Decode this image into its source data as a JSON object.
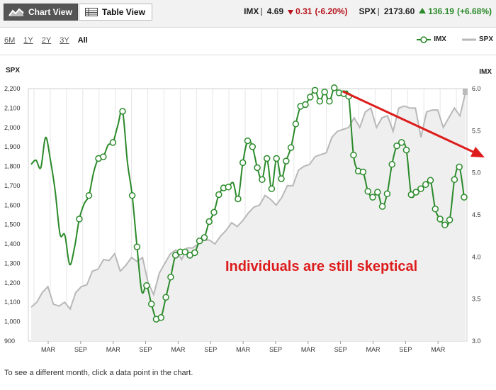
{
  "toolbar": {
    "chart_view_label": "Chart View",
    "table_view_label": "Table View"
  },
  "quotes": [
    {
      "symbol": "IMX",
      "value": "4.69",
      "change": "0.31",
      "pct": "(-6.20%)",
      "direction": "down"
    },
    {
      "symbol": "SPX",
      "value": "2173.60",
      "change": "136.19",
      "pct": "(+6.68%)",
      "direction": "up"
    }
  ],
  "ranges": [
    {
      "label": "6M",
      "active": false
    },
    {
      "label": "1Y",
      "active": false
    },
    {
      "label": "2Y",
      "active": false
    },
    {
      "label": "3Y",
      "active": false
    },
    {
      "label": "All",
      "active": true
    }
  ],
  "colors": {
    "imx": "#2a8a2a",
    "spx": "#b8b8b8",
    "spx_fill": "#efefef",
    "annotation": "#dd1c1c"
  },
  "chart_data": {
    "type": "line",
    "annotation": "Individuals are still skeptical",
    "left_axis": {
      "label": "SPX",
      "min": 900,
      "max": 2200,
      "ticks": [
        "900",
        "1,000",
        "1,100",
        "1,200",
        "1,300",
        "1,400",
        "1,500",
        "1,600",
        "1,700",
        "1,800",
        "1,900",
        "2,000",
        "2,100",
        "2,200"
      ]
    },
    "right_axis": {
      "label": "IMX",
      "min": 3.0,
      "max": 6.0,
      "ticks": [
        "3.0",
        "3.5",
        "4.0",
        "4.5",
        "5.0",
        "5.5",
        "6.0"
      ]
    },
    "x_labels": [
      "MAR",
      "SEP",
      "MAR",
      "SEP",
      "MAR",
      "SEP",
      "MAR",
      "SEP",
      "MAR",
      "SEP",
      "MAR",
      "SEP",
      "MAR"
    ],
    "legend": [
      "IMX",
      "SPX"
    ],
    "series": [
      {
        "name": "SPX",
        "values": [
          1075,
          1100,
          1150,
          1180,
          1090,
          1080,
          1100,
          1065,
          1150,
          1180,
          1190,
          1260,
          1270,
          1320,
          1315,
          1350,
          1260,
          1290,
          1330,
          1310,
          1330,
          1200,
          1140,
          1250,
          1300,
          1350,
          1370,
          1320,
          1380,
          1380,
          1400,
          1420,
          1420,
          1400,
          1440,
          1470,
          1510,
          1490,
          1520,
          1560,
          1590,
          1600,
          1650,
          1630,
          1600,
          1640,
          1700,
          1700,
          1780,
          1800,
          1810,
          1850,
          1860,
          1870,
          1950,
          1980,
          1990,
          2000,
          2050,
          2000,
          2080,
          2100,
          2000,
          2050,
          2060,
          1980,
          2100,
          2110,
          2100,
          2100,
          1950,
          2080,
          2090,
          2090,
          2000,
          2050,
          2100,
          2060,
          2180
        ]
      },
      {
        "name": "IMX",
        "values": [
          5.1,
          5.15,
          5.06,
          5.42,
          5.15,
          4.78,
          4.27,
          4.26,
          3.91,
          4.11,
          4.45,
          4.63,
          4.73,
          5.01,
          5.17,
          5.19,
          5.33,
          5.36,
          5.56,
          5.73,
          5.13,
          4.73,
          4.12,
          3.59,
          3.66,
          3.44,
          3.26,
          3.28,
          3.52,
          3.76,
          4.02,
          4.06,
          4.06,
          4.02,
          4.05,
          4.19,
          4.23,
          4.42,
          4.53,
          4.74,
          4.82,
          4.83,
          4.88,
          4.69,
          5.12,
          5.38,
          5.31,
          5.06,
          4.92,
          5.17,
          4.81,
          5.17,
          4.93,
          5.14,
          5.3,
          5.58,
          5.79,
          5.81,
          5.9,
          5.98,
          5.85,
          5.96,
          5.85,
          6.01,
          5.95,
          5.94,
          5.91,
          5.21,
          5.02,
          5.01,
          4.78,
          4.71,
          4.77,
          4.6,
          4.75,
          5.1,
          5.32,
          5.36,
          5.27,
          4.74,
          4.77,
          4.81,
          4.86,
          4.91,
          4.57,
          4.45,
          4.38,
          4.44,
          4.92,
          5.07,
          4.71
        ]
      }
    ],
    "imx_markers": [
      10,
      12,
      14,
      15,
      17,
      19,
      21,
      22,
      24,
      25,
      26,
      27,
      28,
      29,
      30,
      31,
      32,
      33,
      34,
      35,
      36,
      37,
      38,
      39,
      40,
      41,
      43,
      44,
      45,
      46,
      47,
      48,
      49,
      50,
      51,
      52,
      53,
      54,
      55,
      56,
      57,
      58,
      59,
      60,
      61,
      62,
      63,
      64,
      65,
      66,
      67,
      68,
      69,
      70,
      71,
      72,
      73,
      74,
      75,
      76,
      77,
      78,
      79,
      80,
      81,
      82,
      83,
      84,
      85,
      86,
      87,
      88,
      89,
      90
    ]
  },
  "footnote": "To see a different month, click a data point in the chart."
}
